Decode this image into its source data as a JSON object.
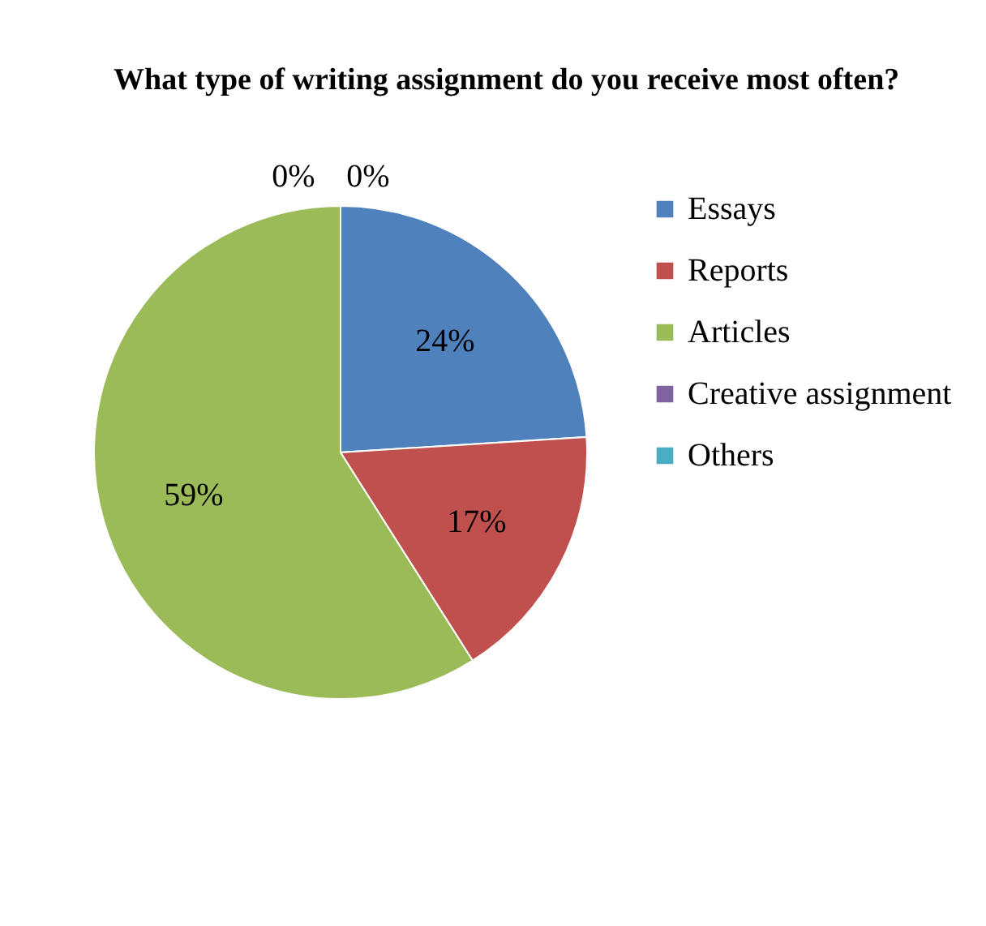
{
  "chart_data": {
    "type": "pie",
    "title": "What type of writing assignment do you receive most often?",
    "categories": [
      "Essays",
      "Reports",
      "Articles",
      "Creative assignment",
      "Others"
    ],
    "values": [
      24,
      17,
      59,
      0,
      0
    ],
    "colors": [
      "#4f81bd",
      "#c0504d",
      "#9bbb59",
      "#8064a2",
      "#4bacc6"
    ],
    "value_labels": [
      "24%",
      "17%",
      "59%",
      "0%",
      "0%"
    ],
    "legend": "right"
  }
}
